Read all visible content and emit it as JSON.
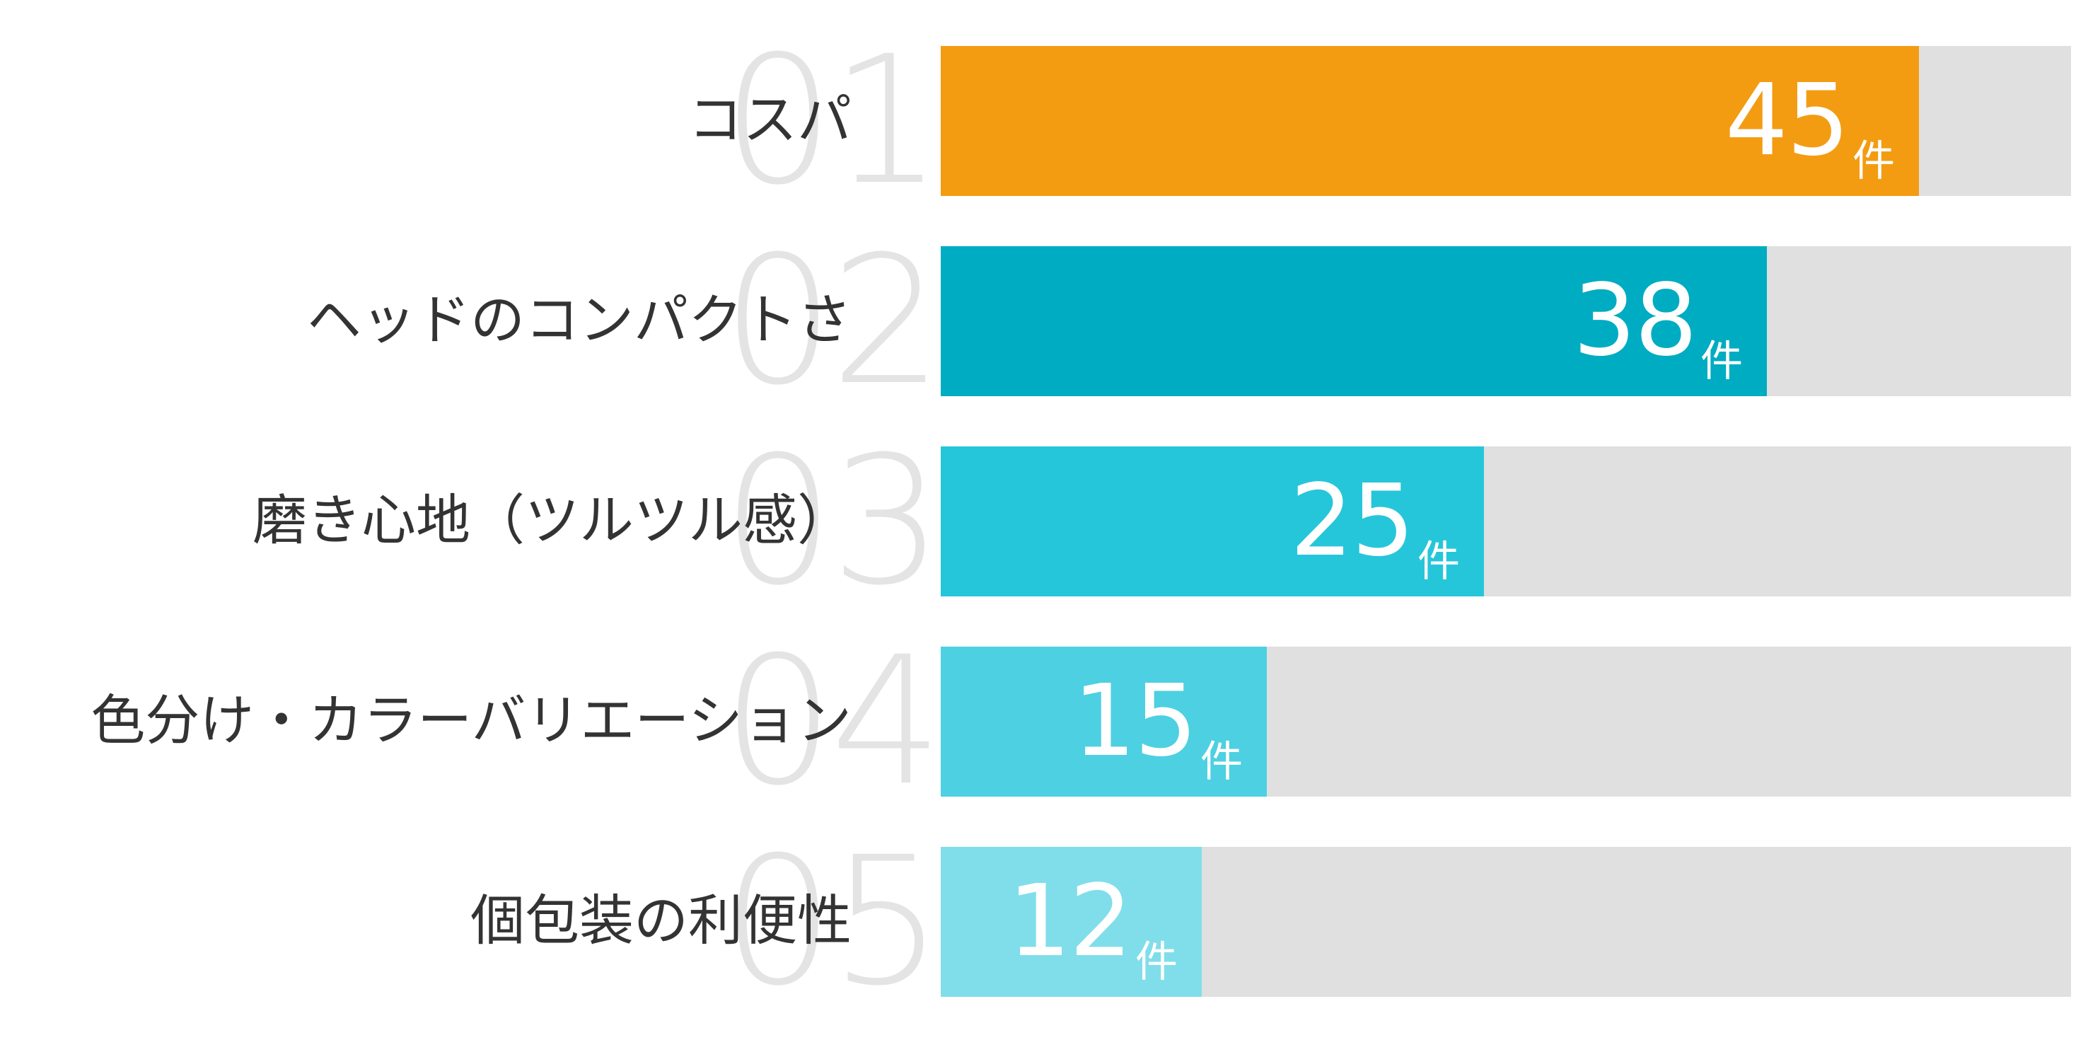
{
  "chart_data": {
    "type": "bar",
    "orientation": "horizontal",
    "categories": [
      "コスパ",
      "ヘッドのコンパクトさ",
      "磨き心地（ツルツル感）",
      "色分け・カラーバリエーション",
      "個包装の利便性"
    ],
    "ranks": [
      "01",
      "02",
      "03",
      "04",
      "05"
    ],
    "values": [
      45,
      38,
      25,
      15,
      12
    ],
    "unit": "件",
    "xlim": [
      0,
      52
    ],
    "colors": [
      "#f39c12",
      "#00acc1",
      "#26c6da",
      "#4dd0e1",
      "#80deea"
    ],
    "track_color": "#e0e0e0"
  }
}
